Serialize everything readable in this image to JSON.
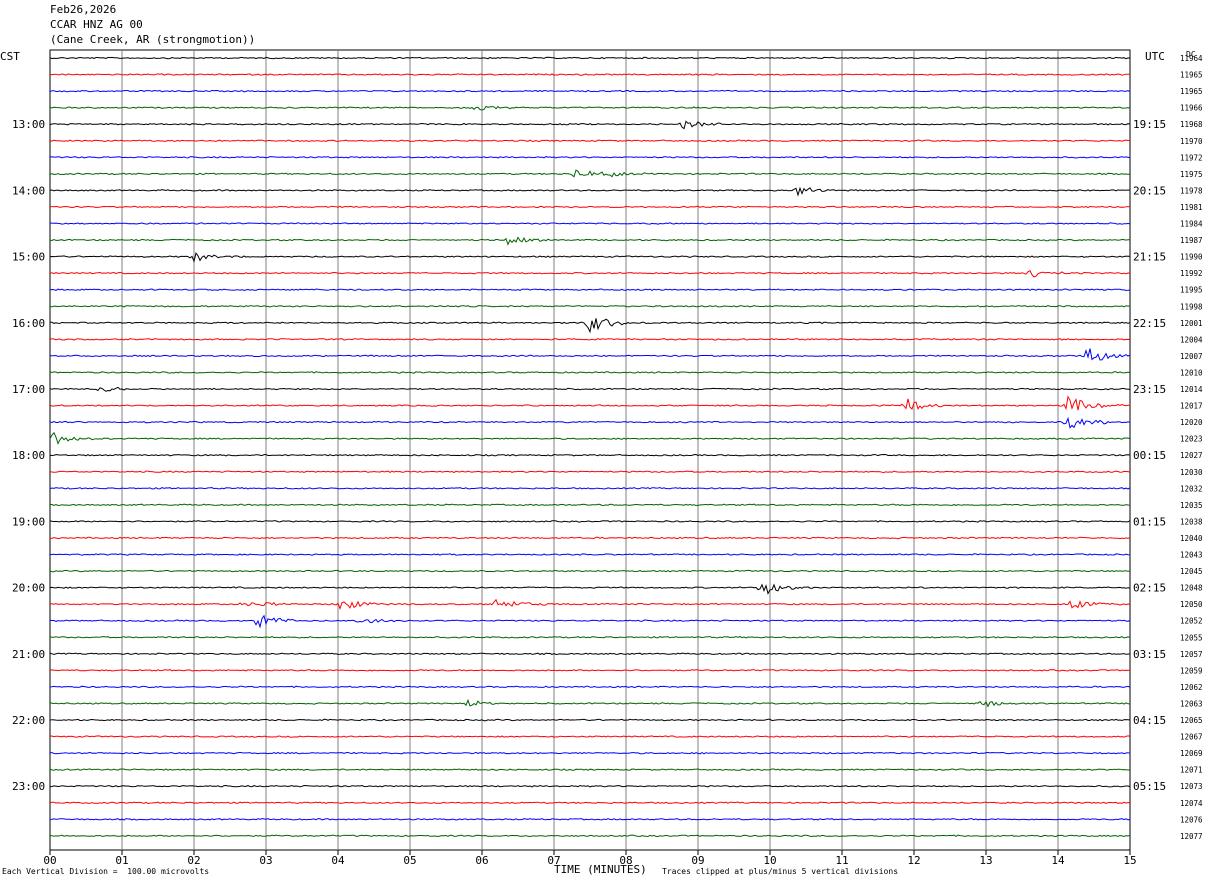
{
  "header": {
    "date": "Feb26,2026",
    "station": "CCAR HNZ AG 00",
    "location": "(Cane Creek, AR (strongmotion))"
  },
  "left_timezone": "CST",
  "right_timezone": "UTC",
  "dc_label": "DC",
  "footer": {
    "left_note": "Each Vertical Division =  100.00 microvolts",
    "axis_title": "TIME (MINUTES)",
    "right_note": "Traces clipped at plus/minus 5 vertical divisions"
  },
  "colors": {
    "cycle": [
      "#000000",
      "#ff0000",
      "#0000ff",
      "#006400"
    ],
    "grid": "#808080"
  },
  "chart_data": {
    "type": "line",
    "title": "CCAR HNZ AG 00",
    "xlabel": "TIME (MINUTES)",
    "xlim": [
      0,
      15
    ],
    "x_tick_labels": [
      "00",
      "01",
      "02",
      "03",
      "04",
      "05",
      "06",
      "07",
      "08",
      "09",
      "10",
      "11",
      "12",
      "13",
      "14",
      "15"
    ],
    "left_hour_labels": [
      "13:00",
      "14:00",
      "15:00",
      "16:00",
      "17:00",
      "18:00",
      "19:00",
      "20:00",
      "21:00",
      "22:00",
      "23:00"
    ],
    "right_hour_labels": [
      "19:15",
      "20:15",
      "21:15",
      "22:15",
      "23:15",
      "00:15",
      "01:15",
      "02:15",
      "03:15",
      "04:15",
      "05:15"
    ],
    "first_labeled_row": 4,
    "dc_offsets": [
      "11964",
      "11965",
      "11965",
      "11966",
      "11968",
      "11970",
      "11972",
      "11975",
      "11978",
      "11981",
      "11984",
      "11987",
      "11990",
      "11992",
      "11995",
      "11998",
      "12001",
      "12004",
      "12007",
      "12010",
      "12014",
      "12017",
      "12020",
      "12023",
      "12027",
      "12030",
      "12032",
      "12035",
      "12038",
      "12040",
      "12043",
      "12045",
      "12048",
      "12050",
      "12052",
      "12055",
      "12057",
      "12059",
      "12062",
      "12063",
      "12065",
      "12067",
      "12069",
      "12071",
      "12073",
      "12074",
      "12076",
      "12077"
    ],
    "events": [
      {
        "row": 3,
        "minute": 5.9,
        "amp": 0.45
      },
      {
        "row": 4,
        "minute": 8.8,
        "amp": 0.5
      },
      {
        "row": 7,
        "minute": 7.3,
        "amp": 0.5
      },
      {
        "row": 7,
        "minute": 7.8,
        "amp": 0.3
      },
      {
        "row": 8,
        "minute": 10.35,
        "amp": 0.6
      },
      {
        "row": 11,
        "minute": 6.35,
        "amp": 0.6
      },
      {
        "row": 12,
        "minute": 2.0,
        "amp": 0.5
      },
      {
        "row": 13,
        "minute": 13.6,
        "amp": 0.5
      },
      {
        "row": 16,
        "minute": 7.5,
        "amp": 1.0
      },
      {
        "row": 18,
        "minute": 14.4,
        "amp": 0.9
      },
      {
        "row": 20,
        "minute": 0.7,
        "amp": 0.35
      },
      {
        "row": 21,
        "minute": 11.9,
        "amp": 0.7
      },
      {
        "row": 21,
        "minute": 14.15,
        "amp": 1.1
      },
      {
        "row": 22,
        "minute": 14.15,
        "amp": 0.9
      },
      {
        "row": 23,
        "minute": 0.05,
        "amp": 0.6
      },
      {
        "row": 32,
        "minute": 9.9,
        "amp": 0.9
      },
      {
        "row": 33,
        "minute": 2.7,
        "amp": 0.5
      },
      {
        "row": 33,
        "minute": 4.05,
        "amp": 0.7
      },
      {
        "row": 33,
        "minute": 6.2,
        "amp": 0.8
      },
      {
        "row": 33,
        "minute": 14.2,
        "amp": 0.5
      },
      {
        "row": 34,
        "minute": 2.9,
        "amp": 0.8
      },
      {
        "row": 34,
        "minute": 4.3,
        "amp": 0.45
      },
      {
        "row": 39,
        "minute": 5.8,
        "amp": 0.4
      },
      {
        "row": 39,
        "minute": 12.9,
        "amp": 0.5
      }
    ]
  }
}
